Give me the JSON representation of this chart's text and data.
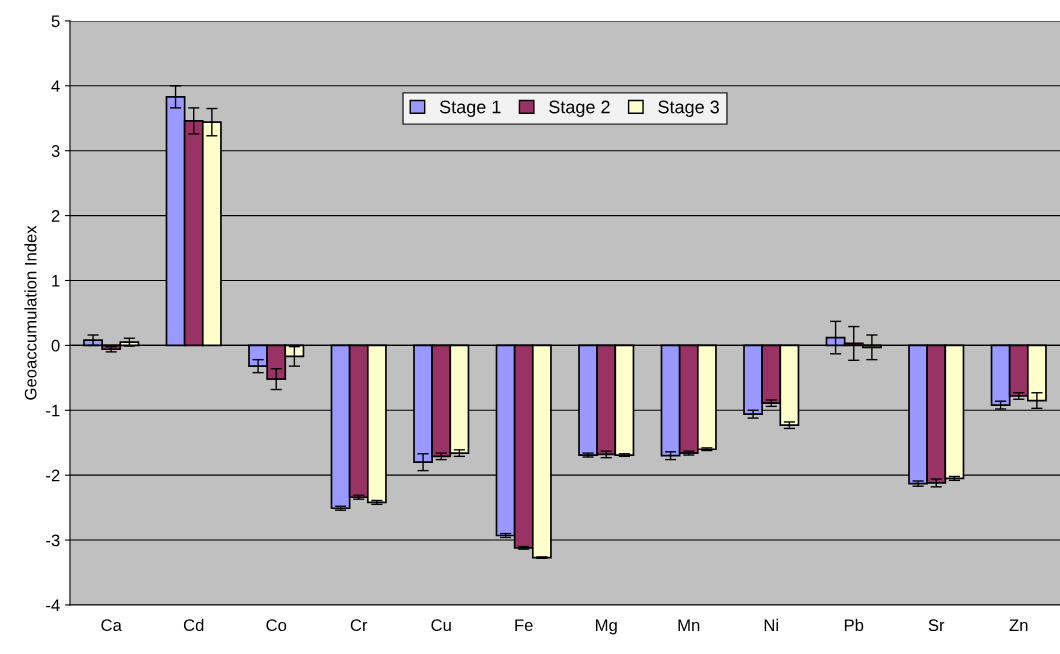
{
  "chart_data": {
    "type": "bar",
    "ylabel": "Geoaccumulation Index",
    "categories": [
      "Ca",
      "Cd",
      "Co",
      "Cr",
      "Cu",
      "Fe",
      "Mg",
      "Mn",
      "Ni",
      "Pb",
      "Sr",
      "Zn"
    ],
    "series": [
      {
        "name": "Stage 1",
        "color": "#9999ff",
        "values": [
          0.08,
          3.83,
          -0.32,
          -2.51,
          -1.8,
          -2.93,
          -1.69,
          -1.7,
          -1.06,
          0.12,
          -2.13,
          -0.92
        ],
        "errors": [
          0.08,
          0.17,
          0.1,
          0.03,
          0.13,
          0.03,
          0.03,
          0.06,
          0.06,
          0.25,
          0.04,
          0.06
        ]
      },
      {
        "name": "Stage 2",
        "color": "#993366",
        "values": [
          -0.06,
          3.46,
          -0.52,
          -2.34,
          -1.71,
          -3.12,
          -1.68,
          -1.66,
          -0.89,
          0.03,
          -2.12,
          -0.78
        ],
        "errors": [
          0.04,
          0.2,
          0.16,
          0.03,
          0.05,
          0.02,
          0.05,
          0.03,
          0.05,
          0.26,
          0.06,
          0.05
        ]
      },
      {
        "name": "Stage 3",
        "color": "#ffffcc",
        "values": [
          0.05,
          3.44,
          -0.17,
          -2.42,
          -1.66,
          -3.27,
          -1.69,
          -1.6,
          -1.23,
          -0.03,
          -2.05,
          -0.85
        ],
        "errors": [
          0.06,
          0.21,
          0.15,
          0.03,
          0.05,
          0.01,
          0.02,
          0.02,
          0.05,
          0.19,
          0.03,
          0.12
        ]
      }
    ],
    "ylim": [
      -4,
      5
    ],
    "yticks": [
      -4,
      -3,
      -2,
      -1,
      0,
      1,
      2,
      3,
      4,
      5
    ],
    "grid": "y",
    "legend": "top"
  }
}
